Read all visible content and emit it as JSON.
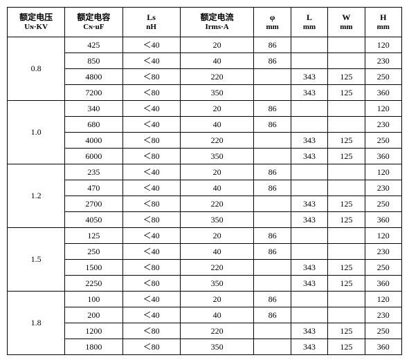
{
  "colors": {
    "border": "#000000",
    "background": "#ffffff",
    "text": "#000000"
  },
  "headers": {
    "voltage": {
      "line1": "额定电压",
      "line2": "Uɴ·KV"
    },
    "cap": {
      "line1": "额定电容",
      "line2": "Cɴ·uF"
    },
    "ls": {
      "line1": "Ls",
      "line2": "nH"
    },
    "irms": {
      "line1": "额定电流",
      "line2": "Irms·A"
    },
    "phi": {
      "line1": "φ",
      "line2": "mm"
    },
    "l": {
      "line1": "L",
      "line2": "mm"
    },
    "w": {
      "line1": "W",
      "line2": "mm"
    },
    "h": {
      "line1": "H",
      "line2": "mm"
    }
  },
  "groups": [
    {
      "voltage": "0.8",
      "rows": [
        {
          "cap": "425",
          "ls": "＜40",
          "irms": "20",
          "phi": "86",
          "l": "",
          "w": "",
          "h": "120"
        },
        {
          "cap": "850",
          "ls": "＜40",
          "irms": "40",
          "phi": "86",
          "l": "",
          "w": "",
          "h": "230"
        },
        {
          "cap": "4800",
          "ls": "＜80",
          "irms": "220",
          "phi": "",
          "l": "343",
          "w": "125",
          "h": "250"
        },
        {
          "cap": "7200",
          "ls": "＜80",
          "irms": "350",
          "phi": "",
          "l": "343",
          "w": "125",
          "h": "360"
        }
      ]
    },
    {
      "voltage": "1.0",
      "rows": [
        {
          "cap": "340",
          "ls": "＜40",
          "irms": "20",
          "phi": "86",
          "l": "",
          "w": "",
          "h": "120"
        },
        {
          "cap": "680",
          "ls": "＜40",
          "irms": "40",
          "phi": "86",
          "l": "",
          "w": "",
          "h": "230"
        },
        {
          "cap": "4000",
          "ls": "＜80",
          "irms": "220",
          "phi": "",
          "l": "343",
          "w": "125",
          "h": "250"
        },
        {
          "cap": "6000",
          "ls": "＜80",
          "irms": "350",
          "phi": "",
          "l": "343",
          "w": "125",
          "h": "360"
        }
      ]
    },
    {
      "voltage": "1.2",
      "rows": [
        {
          "cap": "235",
          "ls": "＜40",
          "irms": "20",
          "phi": "86",
          "l": "",
          "w": "",
          "h": "120"
        },
        {
          "cap": "470",
          "ls": "＜40",
          "irms": "40",
          "phi": "86",
          "l": "",
          "w": "",
          "h": "230"
        },
        {
          "cap": "2700",
          "ls": "＜80",
          "irms": "220",
          "phi": "",
          "l": "343",
          "w": "125",
          "h": "250"
        },
        {
          "cap": "4050",
          "ls": "＜80",
          "irms": "350",
          "phi": "",
          "l": "343",
          "w": "125",
          "h": "360"
        }
      ]
    },
    {
      "voltage": "1.5",
      "rows": [
        {
          "cap": "125",
          "ls": "＜40",
          "irms": "20",
          "phi": "86",
          "l": "",
          "w": "",
          "h": "120"
        },
        {
          "cap": "250",
          "ls": "＜40",
          "irms": "40",
          "phi": "86",
          "l": "",
          "w": "",
          "h": "230"
        },
        {
          "cap": "1500",
          "ls": "＜80",
          "irms": "220",
          "phi": "",
          "l": "343",
          "w": "125",
          "h": "250"
        },
        {
          "cap": "2250",
          "ls": "＜80",
          "irms": "350",
          "phi": "",
          "l": "343",
          "w": "125",
          "h": "360"
        }
      ]
    },
    {
      "voltage": "1.8",
      "rows": [
        {
          "cap": "100",
          "ls": "＜40",
          "irms": "20",
          "phi": "86",
          "l": "",
          "w": "",
          "h": "120"
        },
        {
          "cap": "200",
          "ls": "＜40",
          "irms": "40",
          "phi": "86",
          "l": "",
          "w": "",
          "h": "230"
        },
        {
          "cap": "1200",
          "ls": "＜80",
          "irms": "220",
          "phi": "",
          "l": "343",
          "w": "125",
          "h": "250"
        },
        {
          "cap": "1800",
          "ls": "＜80",
          "irms": "350",
          "phi": "",
          "l": "343",
          "w": "125",
          "h": "360"
        }
      ]
    }
  ]
}
